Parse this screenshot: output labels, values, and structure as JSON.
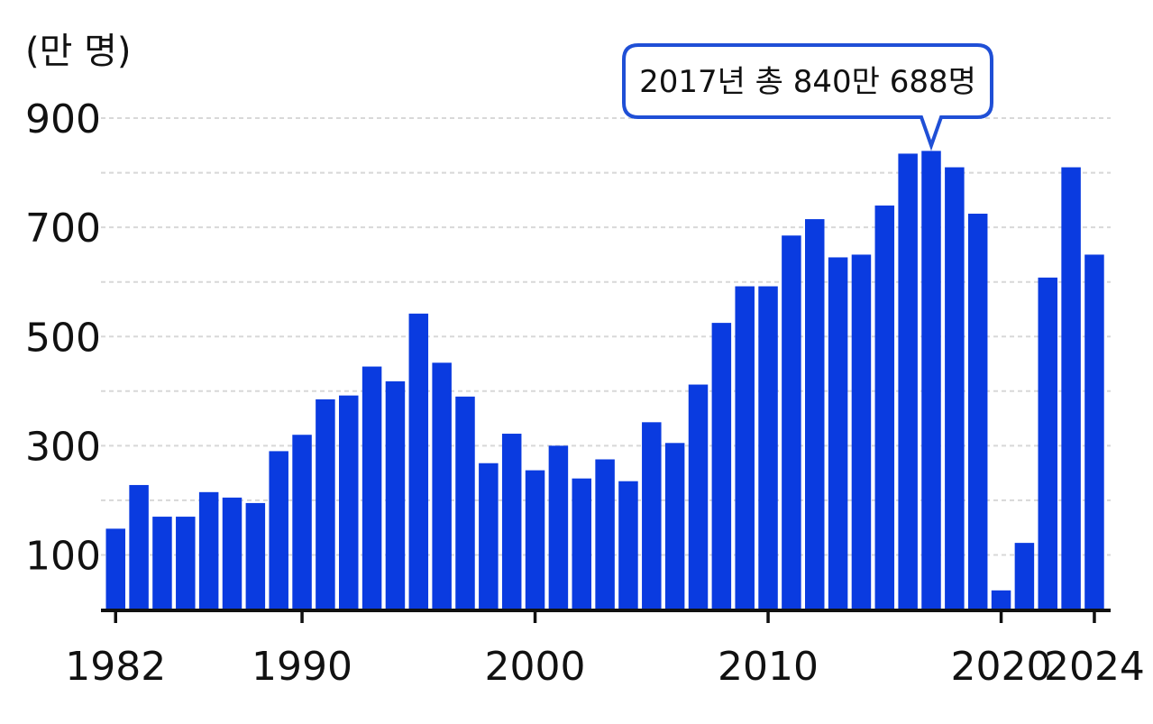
{
  "colors": {
    "bar": "#0a3be0",
    "axis": "#111111",
    "grid": "#d8d8d8",
    "callout_border": "#1f4fd6"
  },
  "chart_data": {
    "type": "bar",
    "title": "",
    "ylabel": "(만 명)",
    "xlabel": "",
    "ylim": [
      0,
      910
    ],
    "grid": true,
    "y_ticks_labeled": [
      100,
      300,
      500,
      700,
      900
    ],
    "gridlines": [
      100,
      200,
      300,
      400,
      500,
      600,
      700,
      800,
      900
    ],
    "x_ticks_labeled": [
      1982,
      1990,
      2000,
      2010,
      2020,
      2024
    ],
    "categories": [
      1982,
      1983,
      1984,
      1985,
      1986,
      1987,
      1988,
      1989,
      1990,
      1991,
      1992,
      1993,
      1994,
      1995,
      1996,
      1997,
      1998,
      1999,
      2000,
      2001,
      2002,
      2003,
      2004,
      2005,
      2006,
      2007,
      2008,
      2009,
      2010,
      2011,
      2012,
      2013,
      2014,
      2015,
      2016,
      2017,
      2018,
      2019,
      2020,
      2021,
      2022,
      2023,
      2024
    ],
    "values": [
      148,
      228,
      170,
      170,
      215,
      205,
      195,
      290,
      320,
      385,
      392,
      445,
      418,
      542,
      452,
      390,
      268,
      322,
      255,
      300,
      240,
      275,
      235,
      343,
      305,
      412,
      525,
      592,
      592,
      685,
      715,
      645,
      650,
      740,
      835,
      840,
      810,
      725,
      35,
      122,
      608,
      810,
      650
    ],
    "annotation": {
      "year": 2017,
      "text": "2017년  총 840만 688명"
    }
  }
}
